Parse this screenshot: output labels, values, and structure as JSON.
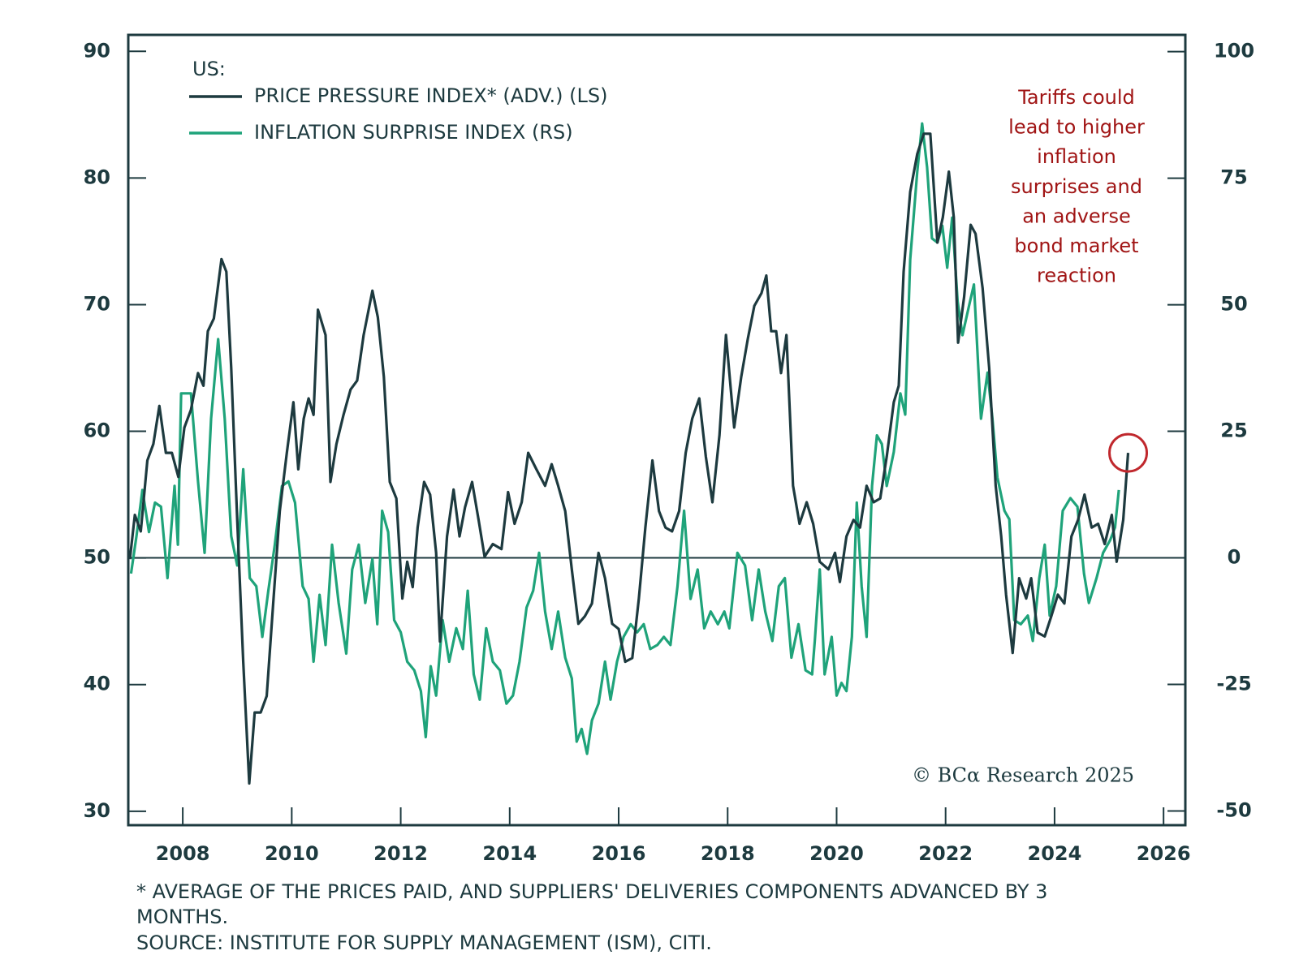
{
  "chart_data": {
    "type": "line",
    "legend_title": "US:",
    "annotation": [
      "Tariffs could",
      "lead to higher",
      "inflation",
      "surprises and",
      "an adverse",
      "bond market",
      "reaction"
    ],
    "copyright": "© BCα Research 2025",
    "footnote": [
      "* AVERAGE OF THE PRICES PAID, AND SUPPLIERS' DELIVERIES COMPONENTS ADVANCED BY 3",
      "MONTHS."
    ],
    "source": "SOURCE: INSTITUTE FOR SUPPLY MANAGEMENT (ISM), CITI.",
    "xlim": [
      2007,
      2026.4
    ],
    "xticks": [
      2008,
      2010,
      2012,
      2014,
      2016,
      2018,
      2020,
      2022,
      2024,
      2026
    ],
    "ylim": [
      28.9,
      91.3
    ],
    "yticks": [
      30,
      40,
      50,
      60,
      70,
      80,
      90
    ],
    "y2lim": [
      -52.8,
      103.3
    ],
    "y2ticks": [
      -50,
      -25,
      0,
      25,
      50,
      75,
      100
    ],
    "y2_reference_line": 0,
    "highlight_point": {
      "x": 2025.35,
      "y": 58.3,
      "color": "#c0282d"
    },
    "annotation_color": "#a01414",
    "series": [
      {
        "name": "PRICE PRESSURE INDEX* (ADV.) (LS)",
        "color": "#1d3a3f",
        "axis": "y",
        "x": [
          2007.03,
          2007.12,
          2007.23,
          2007.35,
          2007.46,
          2007.57,
          2007.69,
          2007.8,
          2007.92,
          2008.03,
          2008.15,
          2008.28,
          2008.38,
          2008.46,
          2008.57,
          2008.71,
          2008.8,
          2008.89,
          2009.0,
          2009.11,
          2009.22,
          2009.32,
          2009.43,
          2009.54,
          2009.66,
          2009.78,
          2009.91,
          2010.03,
          2010.12,
          2010.22,
          2010.31,
          2010.4,
          2010.48,
          2010.62,
          2010.71,
          2010.82,
          2010.95,
          2011.08,
          2011.2,
          2011.32,
          2011.48,
          2011.58,
          2011.69,
          2011.8,
          2011.92,
          2012.03,
          2012.12,
          2012.22,
          2012.31,
          2012.43,
          2012.54,
          2012.65,
          2012.72,
          2012.85,
          2012.97,
          2013.08,
          2013.18,
          2013.31,
          2013.43,
          2013.54,
          2013.69,
          2013.85,
          2013.97,
          2014.09,
          2014.22,
          2014.34,
          2014.49,
          2014.65,
          2014.77,
          2014.89,
          2015.02,
          2015.14,
          2015.26,
          2015.38,
          2015.51,
          2015.63,
          2015.75,
          2015.88,
          2016.0,
          2016.12,
          2016.25,
          2016.37,
          2016.49,
          2016.62,
          2016.74,
          2016.86,
          2016.98,
          2017.11,
          2017.23,
          2017.35,
          2017.48,
          2017.6,
          2017.72,
          2017.85,
          2017.97,
          2018.12,
          2018.25,
          2018.37,
          2018.49,
          2018.62,
          2018.71,
          2018.8,
          2018.89,
          2018.98,
          2019.08,
          2019.2,
          2019.32,
          2019.45,
          2019.57,
          2019.69,
          2019.85,
          2019.97,
          2020.06,
          2020.18,
          2020.31,
          2020.43,
          2020.55,
          2020.68,
          2020.8,
          2020.92,
          2021.05,
          2021.14,
          2021.23,
          2021.35,
          2021.48,
          2021.6,
          2021.72,
          2021.85,
          2021.95,
          2022.06,
          2022.15,
          2022.23,
          2022.34,
          2022.46,
          2022.55,
          2022.68,
          2022.8,
          2022.92,
          2023.02,
          2023.11,
          2023.23,
          2023.35,
          2023.48,
          2023.57,
          2023.69,
          2023.82,
          2023.94,
          2024.06,
          2024.18,
          2024.31,
          2024.43,
          2024.55,
          2024.68,
          2024.8,
          2024.92,
          2025.05,
          2025.14,
          2025.26,
          2025.35
        ],
        "values": [
          49.9,
          53.4,
          52.1,
          57.7,
          59.0,
          62.0,
          58.3,
          58.3,
          56.4,
          60.3,
          61.7,
          64.6,
          63.6,
          67.9,
          68.9,
          73.6,
          72.6,
          65.0,
          53.0,
          41.8,
          32.2,
          37.8,
          37.8,
          39.1,
          46.4,
          53.7,
          58.3,
          62.3,
          57.0,
          61.0,
          62.6,
          61.3,
          69.6,
          67.6,
          56.0,
          59.0,
          61.3,
          63.3,
          64.0,
          67.6,
          71.1,
          69.0,
          64.3,
          56.0,
          54.7,
          46.8,
          49.7,
          47.7,
          52.4,
          56.0,
          55.0,
          50.4,
          43.4,
          51.7,
          55.4,
          51.7,
          54.0,
          56.0,
          53.0,
          50.1,
          51.1,
          50.7,
          55.2,
          52.7,
          54.4,
          58.3,
          57.0,
          55.7,
          57.4,
          55.7,
          53.7,
          49.1,
          44.8,
          45.4,
          46.4,
          50.4,
          48.4,
          44.8,
          44.4,
          41.8,
          42.1,
          46.8,
          52.4,
          57.7,
          53.7,
          52.4,
          52.1,
          53.7,
          58.3,
          61.0,
          62.6,
          58.0,
          54.4,
          59.7,
          67.6,
          60.3,
          64.3,
          67.3,
          69.9,
          70.9,
          72.3,
          67.9,
          67.9,
          64.6,
          67.6,
          55.7,
          52.7,
          54.4,
          52.7,
          49.7,
          49.1,
          50.4,
          48.1,
          51.7,
          53.0,
          52.4,
          55.7,
          54.4,
          54.7,
          58.0,
          62.3,
          63.6,
          72.6,
          78.9,
          81.9,
          83.5,
          83.5,
          74.9,
          76.9,
          80.5,
          76.9,
          67.0,
          70.6,
          76.3,
          75.6,
          71.3,
          65.0,
          55.7,
          51.7,
          47.1,
          42.5,
          48.4,
          46.8,
          48.4,
          44.1,
          43.8,
          45.4,
          47.1,
          46.4,
          51.7,
          53.0,
          55.0,
          52.4,
          52.7,
          51.1,
          53.4,
          49.7,
          53.0,
          58.3
        ]
      },
      {
        "name": "INFLATION SURPRISE INDEX (RS)",
        "color": "#1fa37a",
        "axis": "y2",
        "x": [
          2007.05,
          2007.15,
          2007.26,
          2007.38,
          2007.49,
          2007.6,
          2007.72,
          2007.85,
          2007.91,
          2007.97,
          2008.15,
          2008.28,
          2008.4,
          2008.52,
          2008.65,
          2008.77,
          2008.89,
          2009.0,
          2009.11,
          2009.23,
          2009.35,
          2009.46,
          2009.57,
          2009.69,
          2009.82,
          2009.94,
          2010.06,
          2010.2,
          2010.31,
          2010.4,
          2010.51,
          2010.62,
          2010.74,
          2010.86,
          2011.0,
          2011.11,
          2011.23,
          2011.35,
          2011.48,
          2011.57,
          2011.66,
          2011.77,
          2011.88,
          2012.0,
          2012.12,
          2012.25,
          2012.37,
          2012.46,
          2012.55,
          2012.65,
          2012.77,
          2012.89,
          2013.02,
          2013.14,
          2013.23,
          2013.34,
          2013.45,
          2013.57,
          2013.69,
          2013.82,
          2013.94,
          2014.06,
          2014.18,
          2014.31,
          2014.43,
          2014.54,
          2014.65,
          2014.77,
          2014.89,
          2015.02,
          2015.14,
          2015.23,
          2015.32,
          2015.42,
          2015.51,
          2015.63,
          2015.75,
          2015.85,
          2015.97,
          2016.09,
          2016.22,
          2016.34,
          2016.46,
          2016.58,
          2016.71,
          2016.83,
          2016.95,
          2017.08,
          2017.2,
          2017.32,
          2017.45,
          2017.57,
          2017.69,
          2017.82,
          2017.94,
          2018.03,
          2018.18,
          2018.32,
          2018.45,
          2018.57,
          2018.69,
          2018.82,
          2018.94,
          2019.05,
          2019.17,
          2019.3,
          2019.43,
          2019.55,
          2019.6,
          2019.69,
          2019.78,
          2019.91,
          2020.0,
          2020.09,
          2020.18,
          2020.28,
          2020.37,
          2020.46,
          2020.55,
          2020.65,
          2020.74,
          2020.83,
          2020.92,
          2021.05,
          2021.17,
          2021.26,
          2021.35,
          2021.48,
          2021.57,
          2021.66,
          2021.75,
          2021.85,
          2021.94,
          2022.03,
          2022.12,
          2022.22,
          2022.31,
          2022.43,
          2022.52,
          2022.65,
          2022.77,
          2022.86,
          2022.95,
          2023.08,
          2023.17,
          2023.26,
          2023.38,
          2023.51,
          2023.6,
          2023.72,
          2023.82,
          2023.91,
          2024.03,
          2024.15,
          2024.29,
          2024.42,
          2024.54,
          2024.63,
          2024.77,
          2024.89,
          2025.02,
          2025.11,
          2025.18
        ],
        "values": [
          -3.1,
          4.3,
          13.4,
          5.1,
          10.9,
          10.1,
          -4.0,
          14.2,
          2.6,
          32.5,
          32.5,
          15.1,
          1.0,
          27.5,
          43.2,
          27.5,
          4.3,
          -1.5,
          17.5,
          -4.0,
          -5.6,
          -15.6,
          -6.5,
          2.6,
          14.2,
          15.1,
          10.9,
          -5.6,
          -8.1,
          -20.5,
          -7.3,
          -17.2,
          2.6,
          -8.9,
          -18.9,
          -2.3,
          2.6,
          -8.9,
          -0.2,
          -13.1,
          9.3,
          5.1,
          -12.3,
          -14.7,
          -20.5,
          -22.2,
          -26.3,
          -35.4,
          -21.4,
          -27.2,
          -12.3,
          -20.5,
          -13.9,
          -18.0,
          -6.5,
          -23.0,
          -28.0,
          -13.9,
          -20.5,
          -22.2,
          -28.8,
          -27.2,
          -20.5,
          -9.8,
          -6.5,
          1.0,
          -10.6,
          -18.0,
          -10.6,
          -19.7,
          -23.8,
          -36.3,
          -33.8,
          -38.7,
          -32.1,
          -28.8,
          -20.5,
          -28.0,
          -20.5,
          -15.6,
          -13.1,
          -14.7,
          -13.1,
          -18.0,
          -17.2,
          -15.6,
          -17.2,
          -5.6,
          9.3,
          -8.1,
          -2.3,
          -13.9,
          -10.6,
          -13.1,
          -10.6,
          -13.9,
          1.0,
          -1.5,
          -12.3,
          -2.3,
          -10.6,
          -16.4,
          -5.6,
          -4.0,
          -19.7,
          -13.1,
          -22.2,
          -23.0,
          -16.4,
          -2.3,
          -23.0,
          -15.6,
          -27.2,
          -24.7,
          -26.3,
          -15.6,
          10.9,
          -5.6,
          -15.6,
          14.2,
          24.2,
          22.5,
          14.2,
          20.9,
          32.5,
          28.3,
          58.9,
          76.3,
          85.8,
          77.2,
          63.1,
          62.3,
          65.6,
          57.3,
          67.2,
          50.7,
          44.0,
          49.8,
          54.0,
          27.5,
          36.6,
          27.5,
          15.9,
          9.3,
          7.6,
          -12.3,
          -13.1,
          -11.4,
          -16.4,
          -4.0,
          2.6,
          -11.4,
          -5.6,
          9.3,
          11.8,
          10.1,
          -3.1,
          -8.9,
          -4.0,
          1.0,
          3.5,
          6.0,
          13.4
        ]
      }
    ]
  }
}
